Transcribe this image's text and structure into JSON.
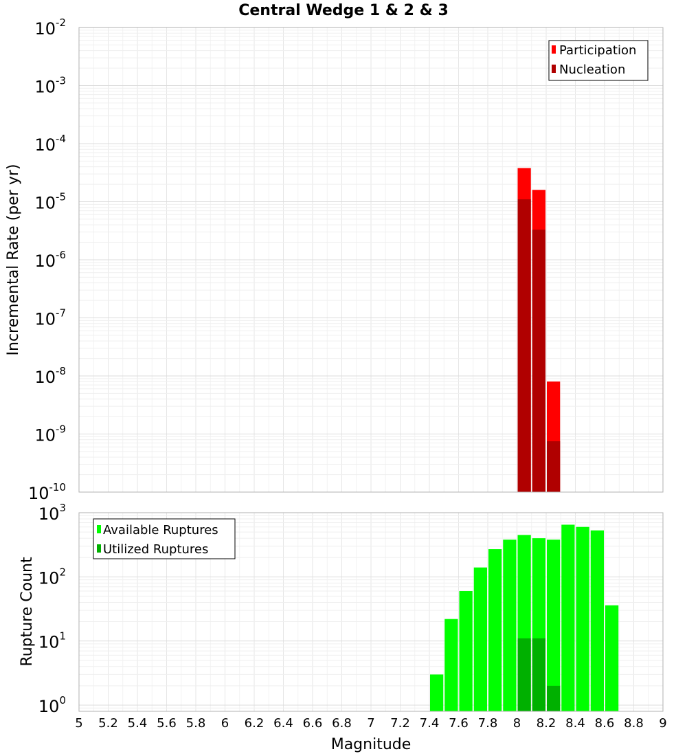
{
  "chart_data": [
    {
      "type": "bar",
      "title": "Central Wedge 1 & 2 & 3",
      "xlabel": "Magnitude",
      "ylabel": "Incremental Rate (per yr)",
      "yscale": "log",
      "xlim": [
        5,
        9
      ],
      "ylim": [
        1e-10,
        0.01
      ],
      "bin_width": 0.1,
      "y_tick_labels": [
        {
          "base": "10",
          "exp": "-2"
        },
        {
          "base": "10",
          "exp": "-3"
        },
        {
          "base": "10",
          "exp": "-4"
        },
        {
          "base": "10",
          "exp": "-5"
        },
        {
          "base": "10",
          "exp": "-6"
        },
        {
          "base": "10",
          "exp": "-7"
        },
        {
          "base": "10",
          "exp": "-8"
        },
        {
          "base": "10",
          "exp": "-9"
        },
        {
          "base": "10",
          "exp": "-10"
        }
      ],
      "legend_position": "top-right",
      "series": [
        {
          "name": "Participation",
          "color": "#ff0000",
          "x": [
            8.05,
            8.15,
            8.25
          ],
          "values": [
            3.8e-05,
            1.6e-05,
            8e-09
          ]
        },
        {
          "name": "Nucleation",
          "color": "#b00000",
          "x": [
            8.05,
            8.15,
            8.25
          ],
          "values": [
            1.1e-05,
            3.3e-06,
            7.5e-10
          ]
        }
      ]
    },
    {
      "type": "bar",
      "title": "",
      "xlabel": "Magnitude",
      "ylabel": "Rupture Count",
      "yscale": "log",
      "xlim": [
        5,
        9
      ],
      "ylim": [
        0.8,
        1000
      ],
      "bin_width": 0.1,
      "x_tick_labels": [
        "5",
        "5.2",
        "5.4",
        "5.6",
        "5.8",
        "6",
        "6.2",
        "6.4",
        "6.6",
        "6.8",
        "7",
        "7.2",
        "7.4",
        "7.6",
        "7.8",
        "8",
        "8.2",
        "8.4",
        "8.6",
        "8.8",
        "9"
      ],
      "y_tick_labels": [
        {
          "base": "10",
          "exp": "3"
        },
        {
          "base": "10",
          "exp": "2"
        },
        {
          "base": "10",
          "exp": "1"
        },
        {
          "base": "10",
          "exp": "0"
        }
      ],
      "legend_position": "top-left",
      "series": [
        {
          "name": "Available Ruptures",
          "color": "#00ff00",
          "x": [
            7.45,
            7.55,
            7.65,
            7.75,
            7.85,
            7.95,
            8.05,
            8.15,
            8.25,
            8.35,
            8.45,
            8.55,
            8.65
          ],
          "values": [
            3,
            22,
            60,
            140,
            270,
            380,
            450,
            400,
            380,
            650,
            600,
            530,
            36
          ]
        },
        {
          "name": "Utilized Ruptures",
          "color": "#00b000",
          "x": [
            8.05,
            8.15,
            8.25
          ],
          "values": [
            11,
            11,
            2
          ]
        }
      ]
    }
  ]
}
